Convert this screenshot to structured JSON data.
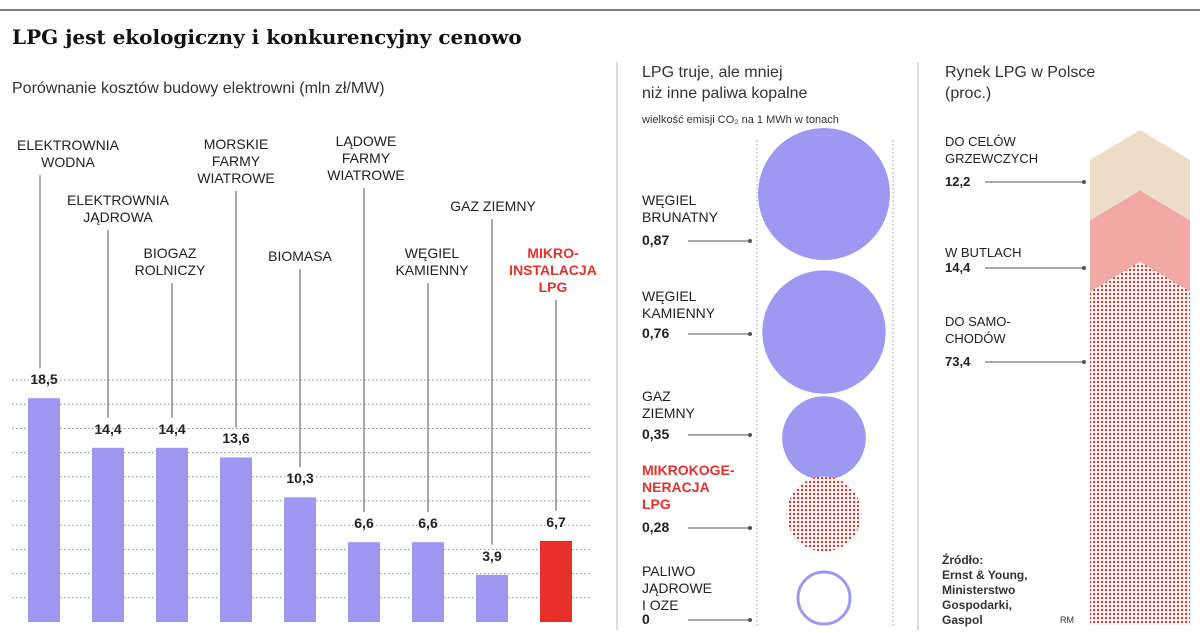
{
  "title": "LPG jest ekologiczny i konkurencyjny cenowo",
  "chart_data": [
    {
      "type": "bar",
      "title": "Porównanie kosztów budowy elektrowni (mln zł/MW)",
      "categories": [
        "ELEKTROWNIA\nWODNA",
        "ELEKTROWNIA\nJĄDROWA",
        "BIOGAZ\nROLNICZY",
        "MORSKIE\nFARMY\nWIATROWE",
        "BIOMASA",
        "LĄDOWE\nFARMY\nWIATROWE",
        "WĘGIEL\nKAMIENNY",
        "GAZ ZIEMNY",
        "MIKRO-\nINSTALACJA\nLPG"
      ],
      "values": [
        18.5,
        14.4,
        14.4,
        13.6,
        10.3,
        6.6,
        6.6,
        3.9,
        6.7
      ],
      "value_labels": [
        "18,5",
        "14,4",
        "14,4",
        "13,6",
        "10,3",
        "6,6",
        "6,6",
        "3,9",
        "6,7"
      ],
      "colors": [
        "#9d99f2",
        "#9d99f2",
        "#9d99f2",
        "#9d99f2",
        "#9d99f2",
        "#9d99f2",
        "#9d99f2",
        "#9d99f2",
        "#e8302a"
      ],
      "highlight_color": "#e8302a",
      "ylim": [
        0,
        20
      ],
      "yticks": [
        2,
        4,
        6,
        8,
        10,
        12,
        14,
        16,
        18,
        20
      ],
      "grid": true
    },
    {
      "type": "bubble",
      "title": "LPG truje, ale mniej\nniż inne paliwa kopalne",
      "subtitle": "wielkość emisji CO₂ na 1 MWh w tonach",
      "categories": [
        "WĘGIEL\nBRUNATNY",
        "WĘGIEL\nKAMIENNY",
        "GAZ\nZIEMNY",
        "MIKROKOGE-\nNERACJA\nLPG",
        "PALIWO\nJĄDROWE\nI OZE"
      ],
      "values": [
        0.87,
        0.76,
        0.35,
        0.28,
        0
      ],
      "value_labels": [
        "0,87",
        "0,76",
        "0,35",
        "0,28",
        "0"
      ],
      "colors": [
        "#9d99f2",
        "#9d99f2",
        "#9d99f2",
        "#e8302a",
        "#9d99f2"
      ],
      "fill_style": [
        "solid",
        "solid",
        "solid",
        "dots",
        "outline"
      ],
      "highlight_color": "#e8302a"
    },
    {
      "type": "stacked_bar",
      "title": "Rynek LPG w Polsce\n(proc.)",
      "series": [
        {
          "name": "DO SAMO-\nCHODÓW",
          "color": "#e8302a",
          "fill_style": "dots",
          "values": [
            73.4
          ],
          "value_labels": [
            "73,4"
          ]
        },
        {
          "name": "W BUTLACH",
          "color": "#f2a9a6",
          "fill_style": "solid",
          "values": [
            14.4
          ],
          "value_labels": [
            "14,4"
          ]
        },
        {
          "name": "DO CELÓW\nGRZEWCZYCH",
          "color": "#eddcc7",
          "fill_style": "solid",
          "values": [
            12.2
          ],
          "value_labels": [
            "12,2"
          ]
        }
      ],
      "ylim": [
        0,
        100
      ]
    }
  ],
  "source": "Źródło:\nErnst & Young,\nMinisterstwo\nGospodarki,\nGaspol",
  "credit": "RM"
}
